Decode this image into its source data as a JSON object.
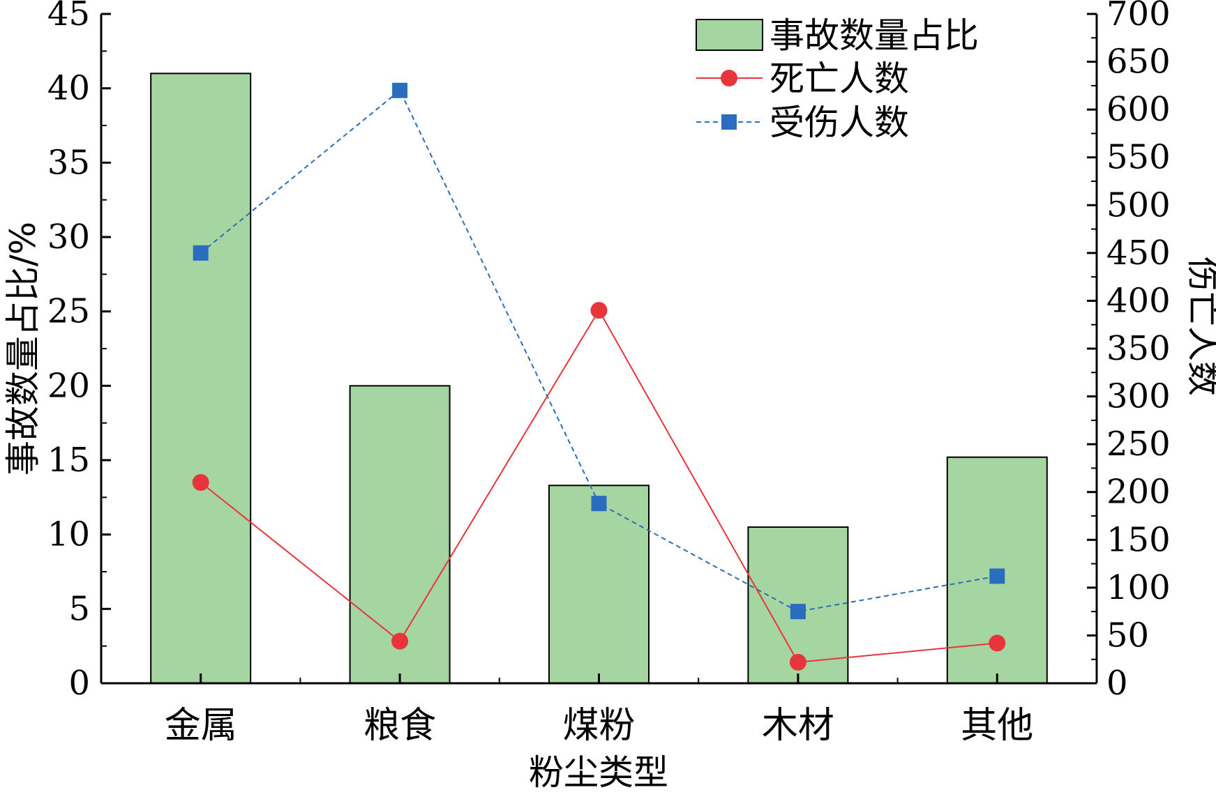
{
  "chart_data": {
    "type": "bar+line",
    "categories": [
      "金属",
      "粮食",
      "煤粉",
      "木材",
      "其他"
    ],
    "xlabel": "粉尘类型",
    "ylabel_left": "事故数量占比/%",
    "ylabel_right": "伤亡人数",
    "ylim_left": [
      0,
      45
    ],
    "yticks_left": [
      0,
      5,
      10,
      15,
      20,
      25,
      30,
      35,
      40,
      45
    ],
    "ylim_right": [
      0,
      700
    ],
    "yticks_right": [
      0,
      50,
      100,
      150,
      200,
      250,
      300,
      350,
      400,
      450,
      500,
      550,
      600,
      650,
      700
    ],
    "series": [
      {
        "name": "事故数量占比",
        "kind": "bar",
        "axis": "left",
        "values": [
          41,
          20,
          13.3,
          10.5,
          15.2
        ]
      },
      {
        "name": "死亡人数",
        "kind": "line",
        "marker": "circle",
        "axis": "right",
        "values": [
          210,
          44,
          390,
          22,
          42
        ]
      },
      {
        "name": "受伤人数",
        "kind": "line",
        "marker": "square",
        "axis": "right",
        "values": [
          450,
          620,
          188,
          75,
          112
        ]
      }
    ],
    "legend_position": "top-right",
    "colors": {
      "bar_fill": "#a5d5a0",
      "death": "#e8353b",
      "injury": "#2a6dbf"
    }
  }
}
